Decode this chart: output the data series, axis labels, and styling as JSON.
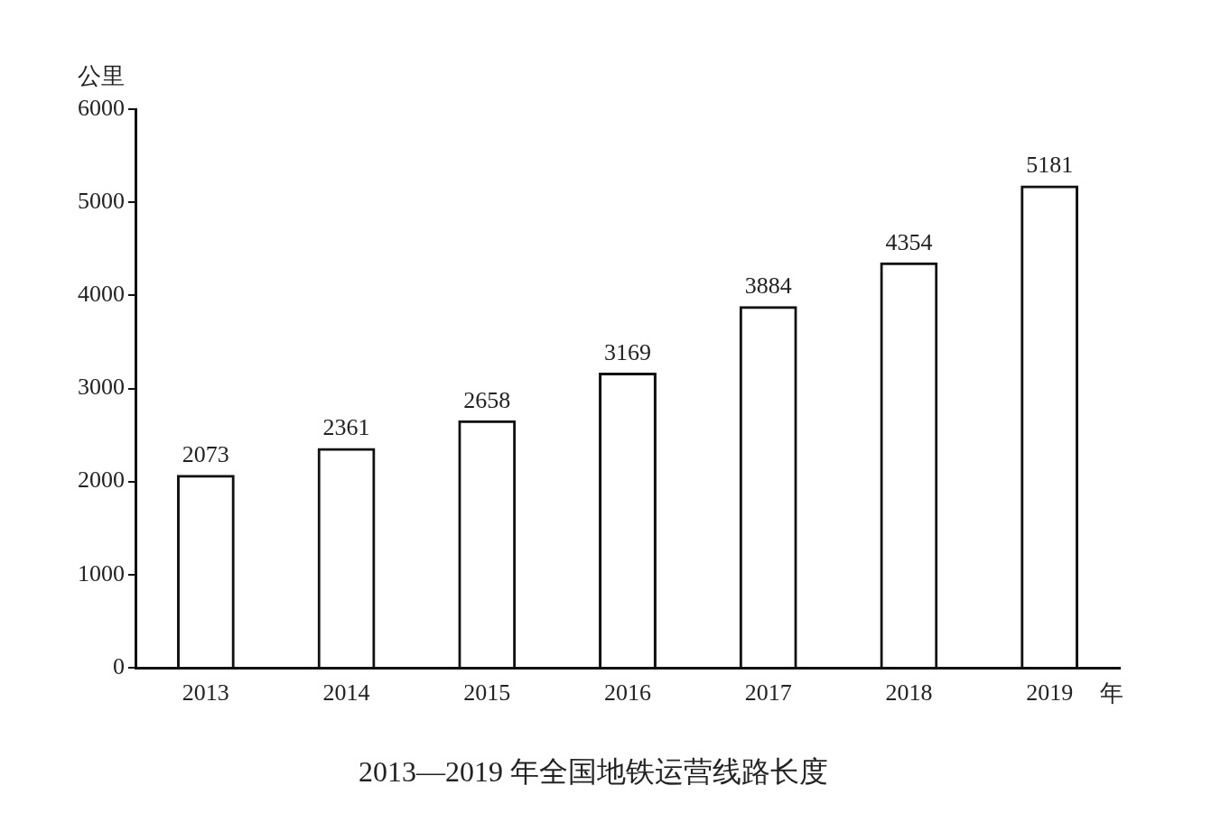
{
  "chart_data": {
    "type": "bar",
    "title": "2013—2019 年全国地铁运营线路长度",
    "xlabel": "年",
    "ylabel": "公里",
    "categories": [
      "2013",
      "2014",
      "2015",
      "2016",
      "2017",
      "2018",
      "2019"
    ],
    "values": [
      2073,
      2361,
      2658,
      3169,
      3884,
      4354,
      5181
    ],
    "color": "#111111",
    "ylim": [
      0,
      6000
    ],
    "yticks": [
      0,
      1000,
      2000,
      3000,
      4000,
      5000,
      6000
    ],
    "grid": false,
    "legend": false,
    "data_labels": true
  }
}
